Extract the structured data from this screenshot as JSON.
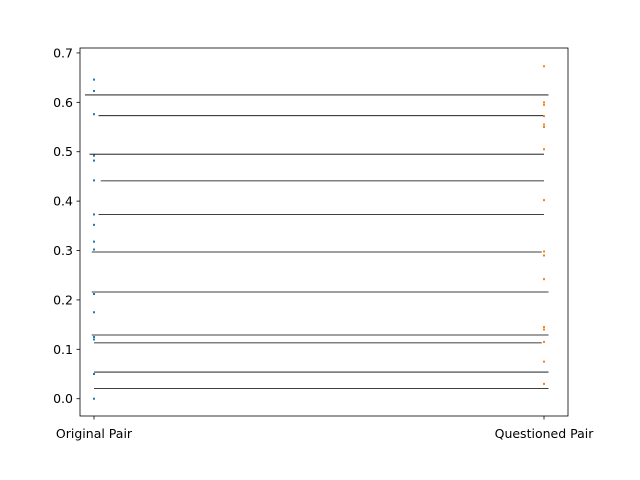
{
  "chart_data": {
    "type": "scatter",
    "title": "",
    "xlabel": "",
    "ylabel": "",
    "categories": [
      "Original Pair",
      "Questioned Pair"
    ],
    "ylim": [
      -0.035,
      0.71
    ],
    "yticks": [
      0.0,
      0.1,
      0.2,
      0.3,
      0.4,
      0.5,
      0.6,
      0.7
    ],
    "ytick_labels": [
      "0.0",
      "0.1",
      "0.2",
      "0.3",
      "0.4",
      "0.5",
      "0.6",
      "0.7"
    ],
    "grid": false,
    "legend": "none",
    "series": [
      {
        "category": "Original Pair",
        "color": "#1f77b4",
        "values": [
          0.0,
          0.05,
          0.12,
          0.125,
          0.175,
          0.212,
          0.302,
          0.318,
          0.352,
          0.373,
          0.442,
          0.482,
          0.492,
          0.576,
          0.623,
          0.646
        ]
      },
      {
        "category": "Questioned Pair",
        "color": "#ff7f0e",
        "values": [
          0.03,
          0.075,
          0.115,
          0.14,
          0.145,
          0.242,
          0.29,
          0.298,
          0.402,
          0.505,
          0.55,
          0.555,
          0.572,
          0.595,
          0.6,
          0.673
        ]
      }
    ],
    "connecting_lines": [
      {
        "y": 0.615,
        "x_start_frac": -0.02,
        "x_end_frac": 1.01
      },
      {
        "y": 0.573,
        "x_start_frac": 0.01,
        "x_end_frac": 1.0
      },
      {
        "y": 0.495,
        "x_start_frac": -0.01,
        "x_end_frac": 1.0
      },
      {
        "y": 0.441,
        "x_start_frac": 0.015,
        "x_end_frac": 1.0
      },
      {
        "y": 0.373,
        "x_start_frac": 0.01,
        "x_end_frac": 1.0
      },
      {
        "y": 0.297,
        "x_start_frac": -0.005,
        "x_end_frac": 0.995
      },
      {
        "y": 0.216,
        "x_start_frac": -0.005,
        "x_end_frac": 1.01
      },
      {
        "y": 0.129,
        "x_start_frac": -0.005,
        "x_end_frac": 1.01
      },
      {
        "y": 0.113,
        "x_start_frac": 0.0,
        "x_end_frac": 0.995
      },
      {
        "y": 0.054,
        "x_start_frac": 0.0,
        "x_end_frac": 1.01
      },
      {
        "y": 0.021,
        "x_start_frac": 0.0,
        "x_end_frac": 1.01
      }
    ]
  }
}
